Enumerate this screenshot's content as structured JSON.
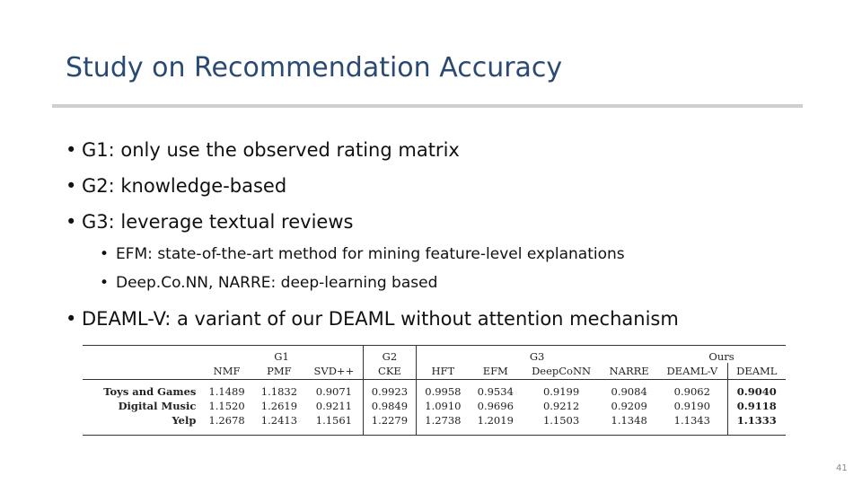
{
  "slide": {
    "title": "Study on Recommendation Accuracy",
    "page_number": "41"
  },
  "bullets": {
    "g1": "G1: only use the observed rating matrix",
    "g2": "G2: knowledge-based",
    "g3": "G3: leverage textual reviews",
    "g3_sub1": "EFM: state-of-the-art method for mining feature-level explanations",
    "g3_sub2": "Deep.Co.NN, NARRE: deep-learning based",
    "deaml": "DEAML-V: a variant of our DEAML without attention mechanism"
  },
  "table": {
    "groups": {
      "g1": "G1",
      "g2": "G2",
      "g3": "G3",
      "ours": "Ours"
    },
    "columns": [
      "NMF",
      "PMF",
      "SVD++",
      "CKE",
      "HFT",
      "EFM",
      "DeepCoNN",
      "NARRE",
      "DEAML-V",
      "DEAML"
    ],
    "rows": [
      {
        "label": "Toys and Games",
        "values": [
          "1.1489",
          "1.1832",
          "0.9071",
          "0.9923",
          "0.9958",
          "0.9534",
          "0.9199",
          "0.9084",
          "0.9062",
          "0.9040"
        ]
      },
      {
        "label": "Digital Music",
        "values": [
          "1.1520",
          "1.2619",
          "0.9211",
          "0.9849",
          "1.0910",
          "0.9696",
          "0.9212",
          "0.9209",
          "0.9190",
          "0.9118"
        ]
      },
      {
        "label": "Yelp",
        "values": [
          "1.2678",
          "1.2413",
          "1.1561",
          "1.2279",
          "1.2738",
          "1.2019",
          "1.1503",
          "1.1348",
          "1.1343",
          "1.1333"
        ]
      }
    ]
  }
}
